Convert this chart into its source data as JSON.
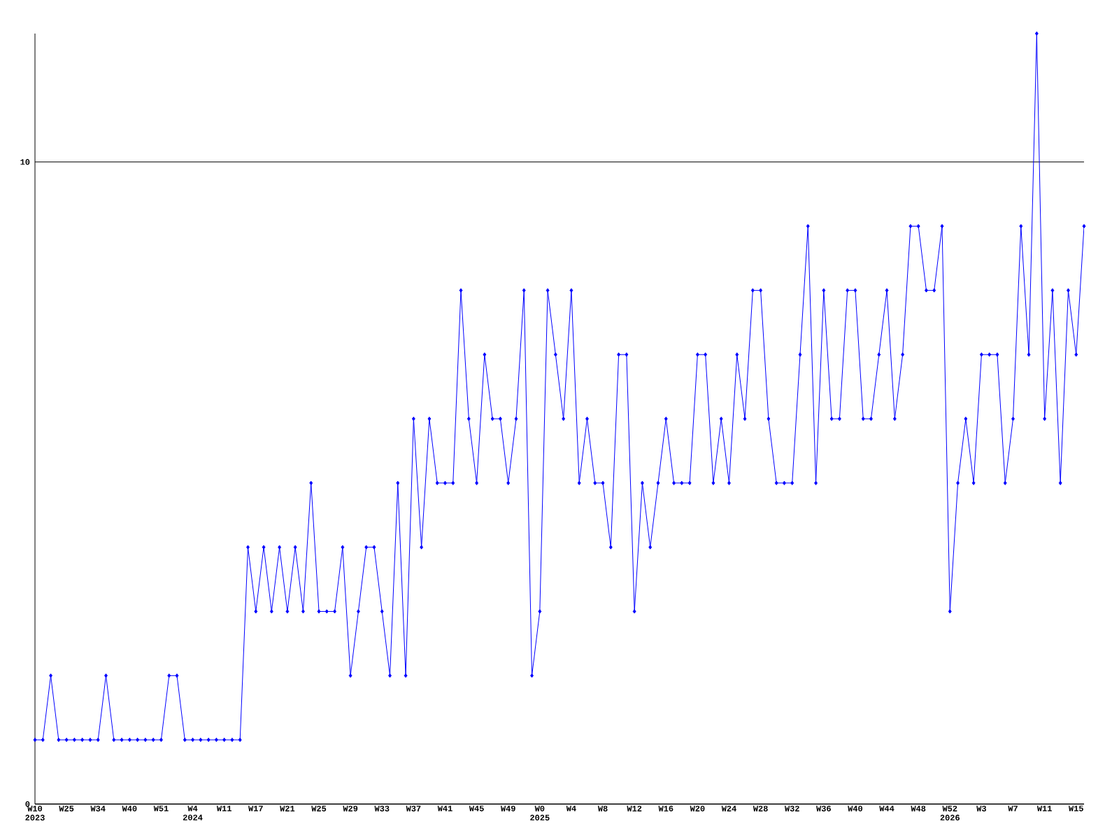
{
  "chart_data": {
    "type": "line",
    "color": "#0000ff",
    "marker": "diamond",
    "grid": "y",
    "ylim": [
      0,
      12
    ],
    "yticks": [
      0,
      10
    ],
    "categories": [
      "W10 2023",
      null,
      null,
      null,
      "W25",
      null,
      null,
      null,
      "W34",
      null,
      null,
      null,
      "W40",
      null,
      null,
      null,
      "W51",
      null,
      null,
      null,
      "W4 2024",
      null,
      null,
      null,
      "W11",
      null,
      null,
      null,
      "W17",
      null,
      null,
      null,
      "W21",
      null,
      null,
      null,
      "W25",
      null,
      null,
      null,
      "W29",
      null,
      null,
      null,
      "W33",
      null,
      null,
      null,
      "W37",
      null,
      null,
      null,
      "W41",
      null,
      null,
      null,
      "W45",
      null,
      null,
      null,
      "W49",
      null,
      null,
      null,
      "W0 2025",
      null,
      null,
      null,
      "W4",
      null,
      null,
      null,
      "W8",
      null,
      null,
      null,
      "W12",
      null,
      null,
      null,
      "W16",
      null,
      null,
      null,
      "W20",
      null,
      null,
      null,
      "W24",
      null,
      null,
      null,
      "W28",
      null,
      null,
      null,
      "W32",
      null,
      null,
      null,
      "W36",
      null,
      null,
      null,
      "W40",
      null,
      null,
      null,
      "W44",
      null,
      null,
      null,
      "W48",
      null,
      null,
      null,
      "W52 2026",
      null,
      null,
      null,
      "W3",
      null,
      null,
      null,
      "W7",
      null,
      null,
      null,
      "W11",
      null,
      null,
      null,
      "W15",
      null
    ],
    "values": [
      1,
      1,
      2,
      1,
      1,
      1,
      1,
      1,
      1,
      2,
      1,
      1,
      1,
      1,
      1,
      1,
      1,
      2,
      2,
      1,
      1,
      1,
      1,
      1,
      1,
      1,
      1,
      4,
      3,
      4,
      3,
      4,
      3,
      4,
      3,
      5,
      3,
      3,
      3,
      4,
      2,
      3,
      4,
      4,
      3,
      2,
      5,
      2,
      6,
      4,
      6,
      5,
      5,
      5,
      8,
      6,
      5,
      7,
      6,
      6,
      5,
      6,
      8,
      2,
      3,
      8,
      7,
      6,
      8,
      5,
      6,
      5,
      5,
      4,
      7,
      7,
      3,
      5,
      4,
      5,
      6,
      5,
      5,
      5,
      7,
      7,
      5,
      6,
      5,
      7,
      6,
      8,
      8,
      6,
      5,
      5,
      5,
      7,
      9,
      5,
      8,
      6,
      6,
      8,
      8,
      6,
      6,
      7,
      8,
      6,
      7,
      9,
      9,
      8,
      8,
      9,
      3,
      5,
      6,
      5,
      7,
      7,
      7,
      5,
      6,
      9,
      7,
      12,
      6,
      8,
      5,
      8,
      7,
      9
    ]
  }
}
